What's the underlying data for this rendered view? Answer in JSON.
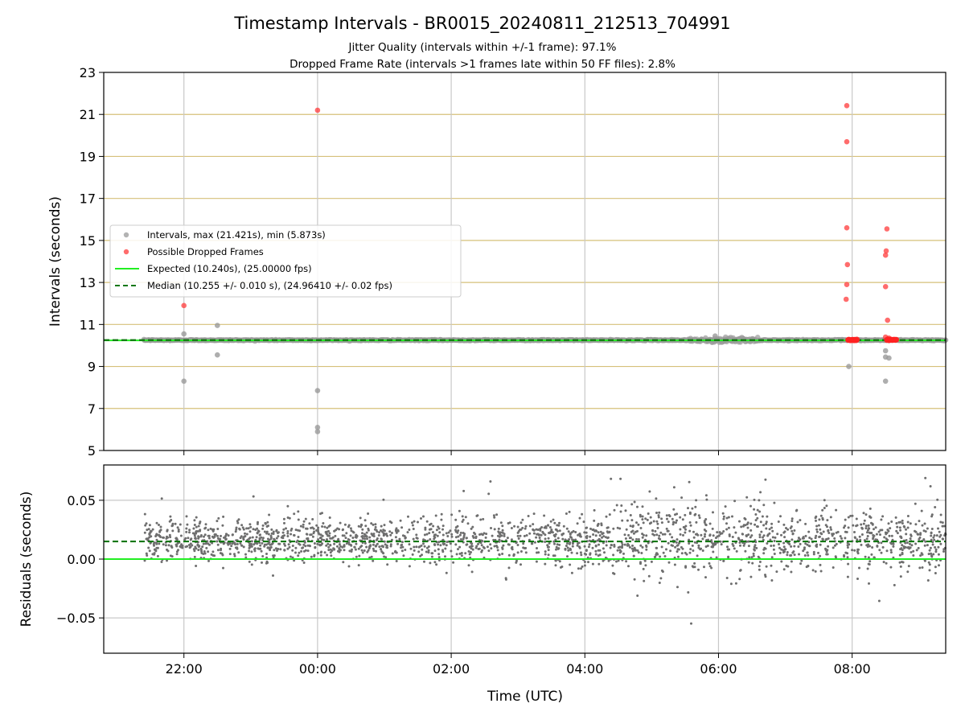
{
  "chart_data": [
    {
      "type": "scatter",
      "panel": "intervals",
      "title": "Timestamp Intervals - BR0015_20240811_212513_704991",
      "subtitles": [
        "Jitter Quality (intervals within +/-1 frame): 97.1%",
        "Dropped Frame Rate (intervals >1 frames late within 50 FF files): 2.8%"
      ],
      "ylabel": "Intervals (seconds)",
      "xlim_hours": [
        -3.2,
        9.4
      ],
      "ylim": [
        5,
        23
      ],
      "yticks": [
        5,
        7,
        9,
        11,
        13,
        15,
        17,
        19,
        21,
        23
      ],
      "ytick_labels": [
        "5",
        "7",
        "9",
        "11",
        "13",
        "15",
        "17",
        "19",
        "21",
        "23"
      ],
      "xticks_hours": [
        -2,
        0,
        2,
        4,
        6,
        8
      ],
      "grid": true,
      "legend_position": "center-left",
      "series": [
        {
          "name": "Intervals, max (21.421s), min (5.873s)",
          "color": "#9a9a9a",
          "x_start_hours": -2.6,
          "x_end_hours": 9.4,
          "baseline_value": 10.255,
          "outliers": [
            {
              "x": -2.0,
              "y": 10.55
            },
            {
              "x": -2.0,
              "y": 8.3
            },
            {
              "x": -1.5,
              "y": 10.95
            },
            {
              "x": -1.5,
              "y": 9.55
            },
            {
              "x": 0.0,
              "y": 7.85
            },
            {
              "x": 0.0,
              "y": 6.1
            },
            {
              "x": 0.0,
              "y": 5.9
            },
            {
              "x": 5.95,
              "y": 10.45
            },
            {
              "x": 6.35,
              "y": 10.38
            },
            {
              "x": 7.95,
              "y": 9.0
            },
            {
              "x": 8.5,
              "y": 9.75
            },
            {
              "x": 8.5,
              "y": 9.45
            },
            {
              "x": 8.55,
              "y": 9.4
            },
            {
              "x": 8.5,
              "y": 8.3
            }
          ]
        },
        {
          "name": "Possible Dropped Frames",
          "color": "#ff3b3b",
          "points": [
            {
              "x": -2.0,
              "y": 11.9
            },
            {
              "x": 0.0,
              "y": 21.2
            },
            {
              "x": 7.92,
              "y": 21.42
            },
            {
              "x": 7.92,
              "y": 19.7
            },
            {
              "x": 7.92,
              "y": 15.6
            },
            {
              "x": 7.93,
              "y": 13.85
            },
            {
              "x": 7.92,
              "y": 12.9
            },
            {
              "x": 7.91,
              "y": 12.2
            },
            {
              "x": 8.52,
              "y": 15.55
            },
            {
              "x": 8.51,
              "y": 14.5
            },
            {
              "x": 8.5,
              "y": 14.3
            },
            {
              "x": 8.5,
              "y": 12.8
            },
            {
              "x": 8.53,
              "y": 11.2
            },
            {
              "x": 8.5,
              "y": 10.4
            },
            {
              "x": 8.55,
              "y": 10.35
            }
          ],
          "clusters": [
            {
              "x_from": 7.94,
              "x_to": 8.07,
              "y": 10.26
            },
            {
              "x_from": 8.52,
              "x_to": 8.66,
              "y": 10.27
            }
          ]
        },
        {
          "name": "Expected (10.240s), (25.00000 fps)",
          "color": "#22ee22",
          "style": "solid",
          "value": 10.24
        },
        {
          "name": "Median (10.255 +/- 0.010 s), (24.96410 +/- 0.02 fps)",
          "color": "#117711",
          "style": "dashed",
          "value": 10.255
        }
      ]
    },
    {
      "type": "scatter",
      "panel": "residuals",
      "ylabel": "Residuals (seconds)",
      "xlabel": "Time (UTC)",
      "xlim_hours": [
        -3.2,
        9.4
      ],
      "ylim": [
        -0.08,
        0.08
      ],
      "yticks": [
        -0.05,
        0.0,
        0.05
      ],
      "ytick_labels": [
        "−0.05",
        "0.00",
        "0.05"
      ],
      "xticks_hours": [
        -2,
        0,
        2,
        4,
        6,
        8
      ],
      "xtick_labels": [
        "22:00",
        "00:00",
        "02:00",
        "04:00",
        "06:00",
        "08:00"
      ],
      "grid": true,
      "series": [
        {
          "name": "residuals",
          "color": "#6e6e6e",
          "x_start_hours": -2.6,
          "x_end_hours": 9.4,
          "center": 0.016,
          "spread_early": 0.011,
          "spread_late": 0.018
        },
        {
          "name": "expected-residual",
          "color": "#22ee22",
          "style": "solid",
          "value": 0.0
        },
        {
          "name": "median-residual",
          "color": "#117711",
          "style": "dashed",
          "value": 0.015
        }
      ]
    }
  ],
  "colors": {
    "grid": "#c8c8c8",
    "hgrid": "#d6c07a",
    "axis": "#000000"
  }
}
